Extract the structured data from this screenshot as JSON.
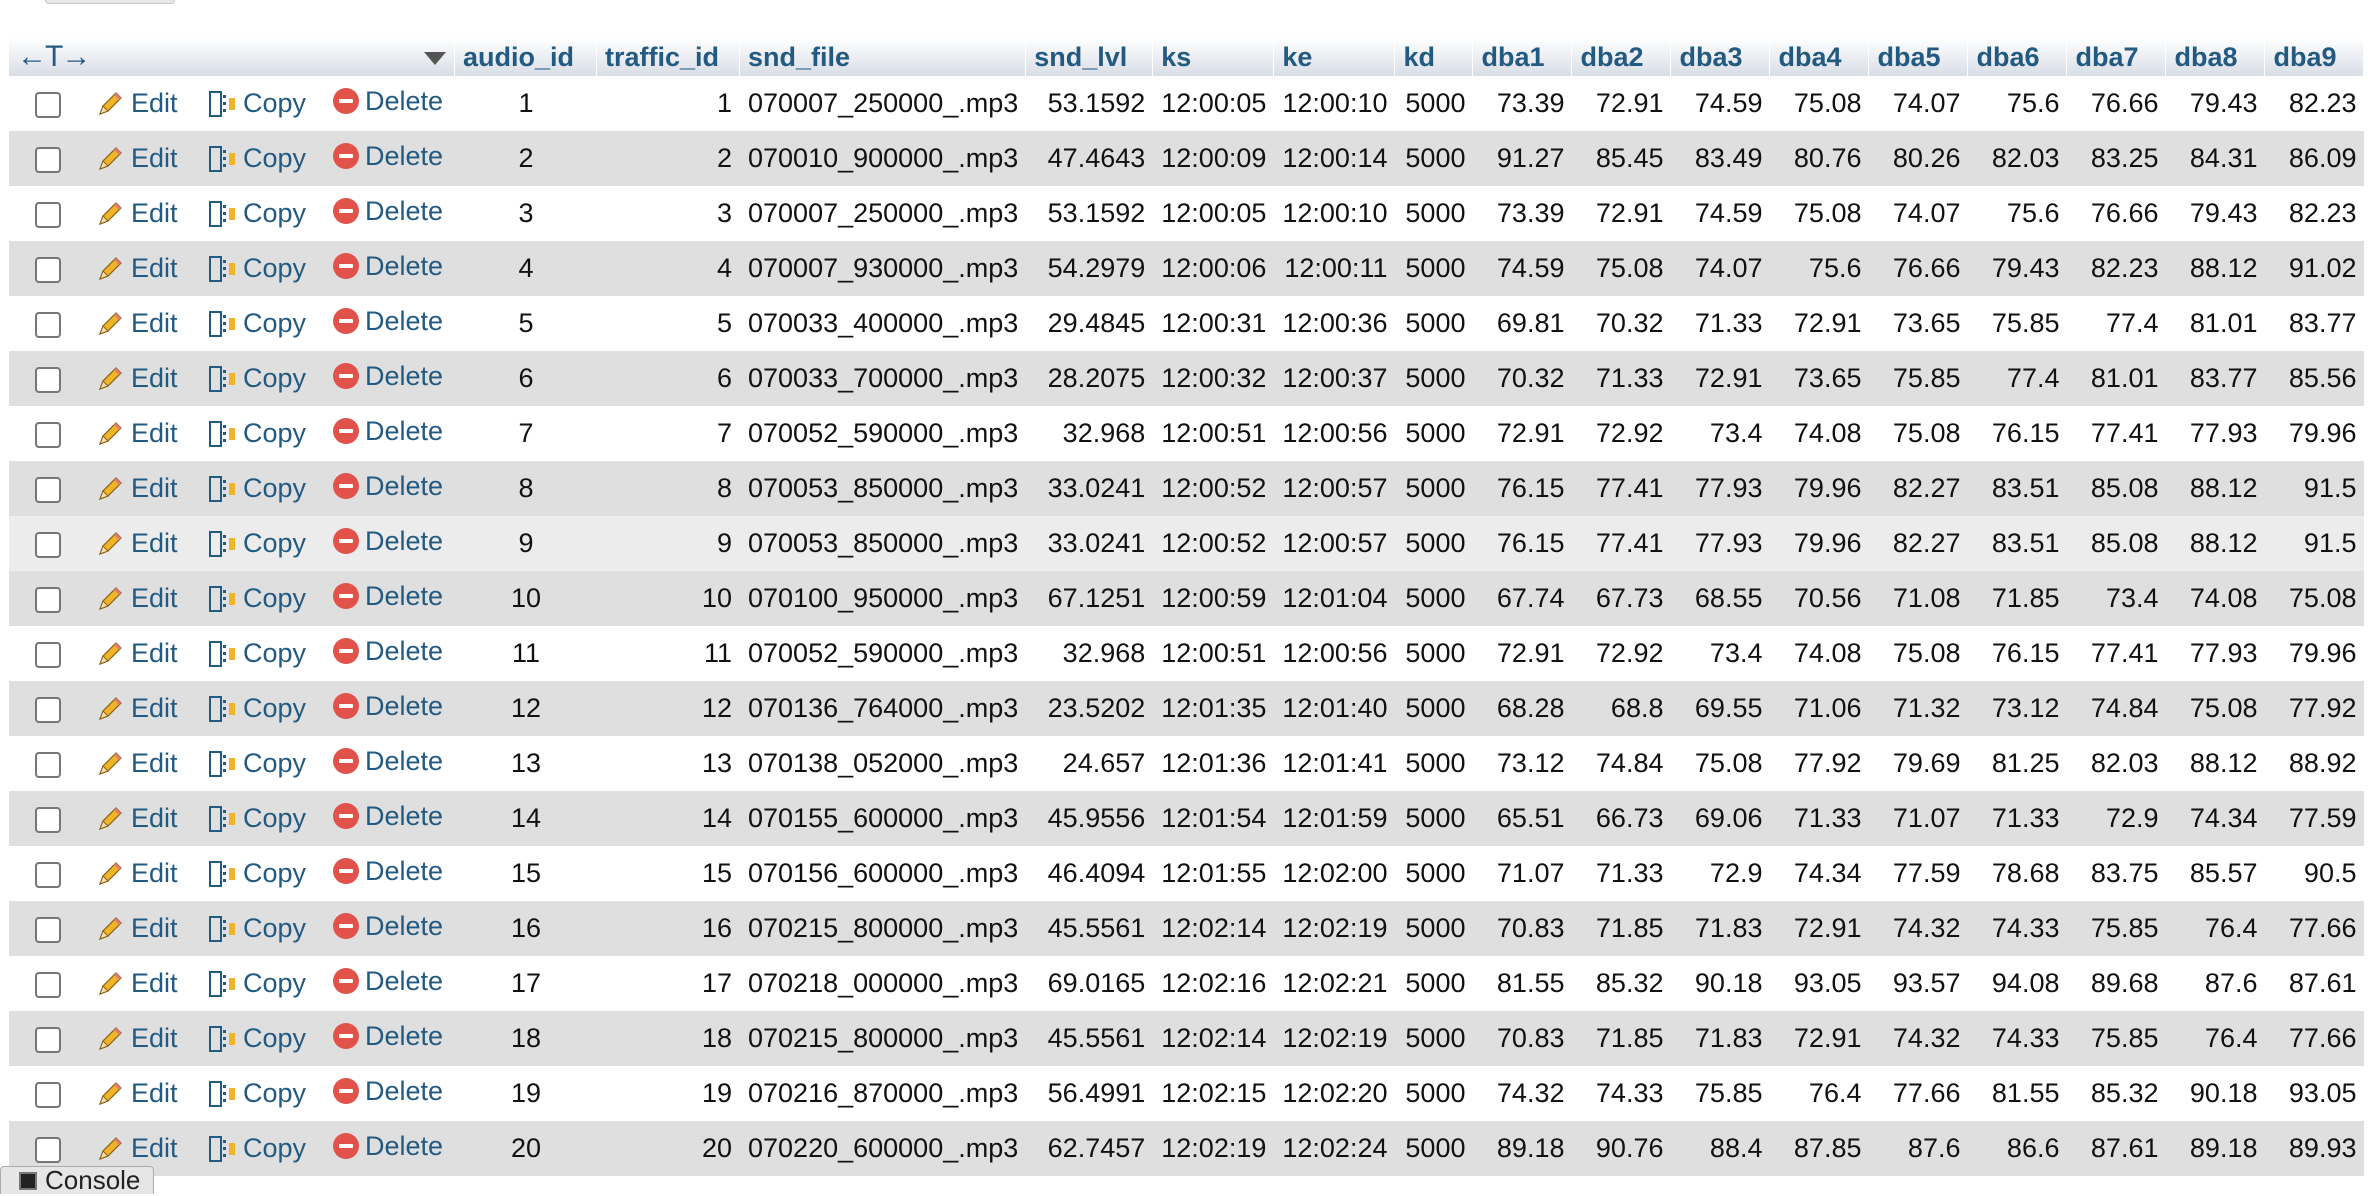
{
  "header": {
    "columns": [
      "audio_id",
      "traffic_id",
      "snd_file",
      "snd_lvl",
      "ks",
      "ke",
      "kd",
      "dba1",
      "dba2",
      "dba3",
      "dba4",
      "dba5",
      "dba6",
      "dba7",
      "dba8",
      "dba9"
    ],
    "arrow_glyphs": "←T→"
  },
  "actions": {
    "edit": "Edit",
    "copy": "Copy",
    "delete": "Delete"
  },
  "rows": [
    [
      "1",
      "1",
      "070007_250000_.mp3",
      "53.1592",
      "12:00:05",
      "12:00:10",
      "5000",
      "73.39",
      "72.91",
      "74.59",
      "75.08",
      "74.07",
      "75.6",
      "76.66",
      "79.43",
      "82.23"
    ],
    [
      "2",
      "2",
      "070010_900000_.mp3",
      "47.4643",
      "12:00:09",
      "12:00:14",
      "5000",
      "91.27",
      "85.45",
      "83.49",
      "80.76",
      "80.26",
      "82.03",
      "83.25",
      "84.31",
      "86.09"
    ],
    [
      "3",
      "3",
      "070007_250000_.mp3",
      "53.1592",
      "12:00:05",
      "12:00:10",
      "5000",
      "73.39",
      "72.91",
      "74.59",
      "75.08",
      "74.07",
      "75.6",
      "76.66",
      "79.43",
      "82.23"
    ],
    [
      "4",
      "4",
      "070007_930000_.mp3",
      "54.2979",
      "12:00:06",
      "12:00:11",
      "5000",
      "74.59",
      "75.08",
      "74.07",
      "75.6",
      "76.66",
      "79.43",
      "82.23",
      "88.12",
      "91.02"
    ],
    [
      "5",
      "5",
      "070033_400000_.mp3",
      "29.4845",
      "12:00:31",
      "12:00:36",
      "5000",
      "69.81",
      "70.32",
      "71.33",
      "72.91",
      "73.65",
      "75.85",
      "77.4",
      "81.01",
      "83.77"
    ],
    [
      "6",
      "6",
      "070033_700000_.mp3",
      "28.2075",
      "12:00:32",
      "12:00:37",
      "5000",
      "70.32",
      "71.33",
      "72.91",
      "73.65",
      "75.85",
      "77.4",
      "81.01",
      "83.77",
      "85.56"
    ],
    [
      "7",
      "7",
      "070052_590000_.mp3",
      "32.968",
      "12:00:51",
      "12:00:56",
      "5000",
      "72.91",
      "72.92",
      "73.4",
      "74.08",
      "75.08",
      "76.15",
      "77.41",
      "77.93",
      "79.96"
    ],
    [
      "8",
      "8",
      "070053_850000_.mp3",
      "33.0241",
      "12:00:52",
      "12:00:57",
      "5000",
      "76.15",
      "77.41",
      "77.93",
      "79.96",
      "82.27",
      "83.51",
      "85.08",
      "88.12",
      "91.5"
    ],
    [
      "9",
      "9",
      "070053_850000_.mp3",
      "33.0241",
      "12:00:52",
      "12:00:57",
      "5000",
      "76.15",
      "77.41",
      "77.93",
      "79.96",
      "82.27",
      "83.51",
      "85.08",
      "88.12",
      "91.5"
    ],
    [
      "10",
      "10",
      "070100_950000_.mp3",
      "67.1251",
      "12:00:59",
      "12:01:04",
      "5000",
      "67.74",
      "67.73",
      "68.55",
      "70.56",
      "71.08",
      "71.85",
      "73.4",
      "74.08",
      "75.08"
    ],
    [
      "11",
      "11",
      "070052_590000_.mp3",
      "32.968",
      "12:00:51",
      "12:00:56",
      "5000",
      "72.91",
      "72.92",
      "73.4",
      "74.08",
      "75.08",
      "76.15",
      "77.41",
      "77.93",
      "79.96"
    ],
    [
      "12",
      "12",
      "070136_764000_.mp3",
      "23.5202",
      "12:01:35",
      "12:01:40",
      "5000",
      "68.28",
      "68.8",
      "69.55",
      "71.06",
      "71.32",
      "73.12",
      "74.84",
      "75.08",
      "77.92"
    ],
    [
      "13",
      "13",
      "070138_052000_.mp3",
      "24.657",
      "12:01:36",
      "12:01:41",
      "5000",
      "73.12",
      "74.84",
      "75.08",
      "77.92",
      "79.69",
      "81.25",
      "82.03",
      "88.12",
      "88.92"
    ],
    [
      "14",
      "14",
      "070155_600000_.mp3",
      "45.9556",
      "12:01:54",
      "12:01:59",
      "5000",
      "65.51",
      "66.73",
      "69.06",
      "71.33",
      "71.07",
      "71.33",
      "72.9",
      "74.34",
      "77.59"
    ],
    [
      "15",
      "15",
      "070156_600000_.mp3",
      "46.4094",
      "12:01:55",
      "12:02:00",
      "5000",
      "71.07",
      "71.33",
      "72.9",
      "74.34",
      "77.59",
      "78.68",
      "83.75",
      "85.57",
      "90.5"
    ],
    [
      "16",
      "16",
      "070215_800000_.mp3",
      "45.5561",
      "12:02:14",
      "12:02:19",
      "5000",
      "70.83",
      "71.85",
      "71.83",
      "72.91",
      "74.32",
      "74.33",
      "75.85",
      "76.4",
      "77.66"
    ],
    [
      "17",
      "17",
      "070218_000000_.mp3",
      "69.0165",
      "12:02:16",
      "12:02:21",
      "5000",
      "81.55",
      "85.32",
      "90.18",
      "93.05",
      "93.57",
      "94.08",
      "89.68",
      "87.6",
      "87.61"
    ],
    [
      "18",
      "18",
      "070215_800000_.mp3",
      "45.5561",
      "12:02:14",
      "12:02:19",
      "5000",
      "70.83",
      "71.85",
      "71.83",
      "72.91",
      "74.32",
      "74.33",
      "75.85",
      "76.4",
      "77.66"
    ],
    [
      "19",
      "19",
      "070216_870000_.mp3",
      "56.4991",
      "12:02:15",
      "12:02:20",
      "5000",
      "74.32",
      "74.33",
      "75.85",
      "76.4",
      "77.66",
      "81.55",
      "85.32",
      "90.18",
      "93.05"
    ],
    [
      "20",
      "20",
      "070220_600000_.mp3",
      "62.7457",
      "12:02:19",
      "12:02:24",
      "5000",
      "89.18",
      "90.76",
      "88.4",
      "87.85",
      "87.6",
      "86.6",
      "87.61",
      "89.18",
      "89.93"
    ]
  ],
  "console": {
    "label": "Console"
  },
  "colors": {
    "link": "#235a81",
    "row_alt": "#dfdfdf",
    "row_hover": "#ececec",
    "delete_icon": "#e0524a"
  }
}
